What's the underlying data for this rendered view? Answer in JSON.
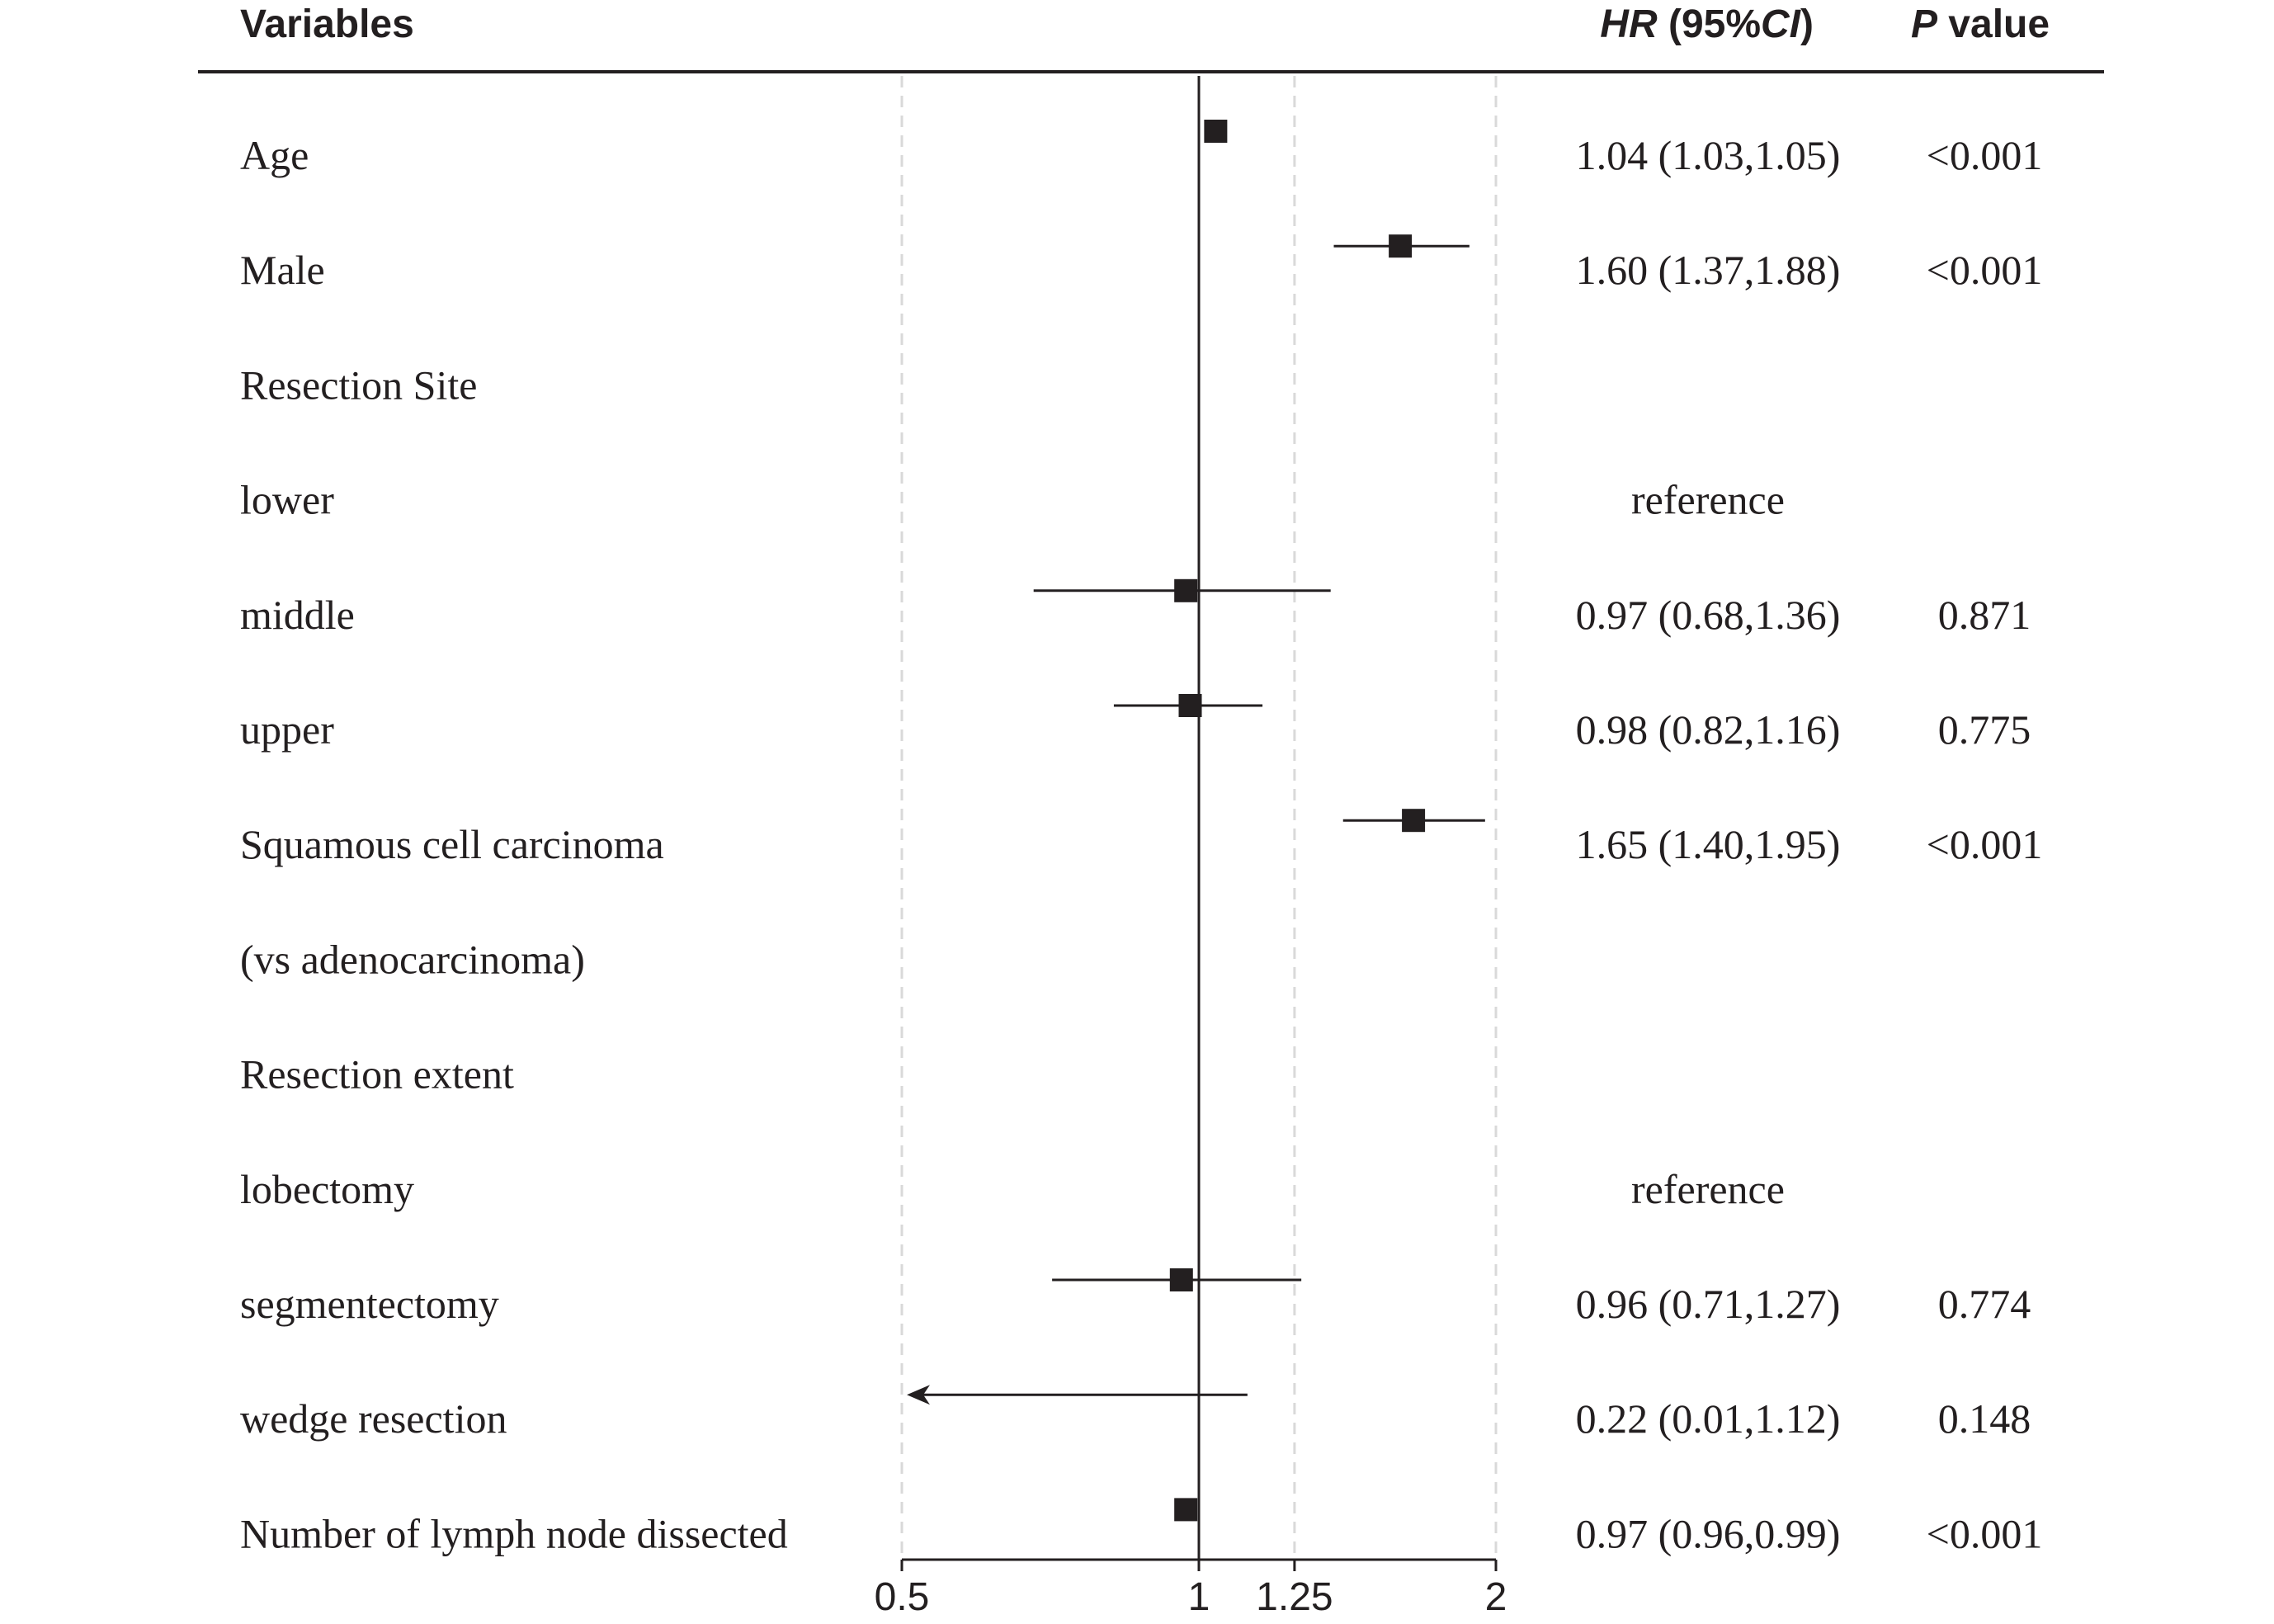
{
  "header": {
    "variables": "Variables",
    "hr_italic": "HR",
    "hr_ci_open": " (95%",
    "hr_ci_italic": "CI",
    "hr_ci_close": ")",
    "p_italic": "P",
    "p_rest": " value"
  },
  "colors": {
    "ink": "#231f20",
    "gridline": "#d9d9d9",
    "background": "#ffffff"
  },
  "chart_data": {
    "type": "forest",
    "xscale": "log",
    "xlim": [
      0.5,
      2
    ],
    "xticks": [
      0.5,
      1,
      1.25,
      2
    ],
    "xtick_labels": [
      "0.5",
      "1",
      "1.25",
      "2"
    ],
    "reference_line": 1,
    "dashed_gridlines": [
      0.5,
      1.25,
      2
    ],
    "rows": [
      {
        "label": "Age",
        "hr": 1.04,
        "lo": 1.03,
        "hi": 1.05,
        "hr_text": "1.04 (1.03,1.05)",
        "p_text": "<0.001",
        "mark": "square"
      },
      {
        "label": "Male",
        "hr": 1.6,
        "lo": 1.37,
        "hi": 1.88,
        "hr_text": "1.60 (1.37,1.88)",
        "p_text": "<0.001",
        "mark": "square"
      },
      {
        "label": "Resection Site",
        "hr": null,
        "lo": null,
        "hi": null,
        "hr_text": "",
        "p_text": "",
        "mark": "none"
      },
      {
        "label": "lower",
        "hr": null,
        "lo": null,
        "hi": null,
        "hr_text": "reference",
        "p_text": "",
        "mark": "none"
      },
      {
        "label": "middle",
        "hr": 0.97,
        "lo": 0.68,
        "hi": 1.36,
        "hr_text": "0.97 (0.68,1.36)",
        "p_text": "0.871",
        "mark": "square"
      },
      {
        "label": "upper",
        "hr": 0.98,
        "lo": 0.82,
        "hi": 1.16,
        "hr_text": "0.98 (0.82,1.16)",
        "p_text": "0.775",
        "mark": "square"
      },
      {
        "label": "Squamous cell carcinoma",
        "hr": 1.65,
        "lo": 1.4,
        "hi": 1.95,
        "hr_text": "1.65 (1.40,1.95)",
        "p_text": "<0.001",
        "mark": "square"
      },
      {
        "label": "(vs adenocarcinoma)",
        "hr": null,
        "lo": null,
        "hi": null,
        "hr_text": "",
        "p_text": "",
        "mark": "none"
      },
      {
        "label": "Resection extent",
        "hr": null,
        "lo": null,
        "hi": null,
        "hr_text": "",
        "p_text": "",
        "mark": "none"
      },
      {
        "label": "lobectomy",
        "hr": null,
        "lo": null,
        "hi": null,
        "hr_text": "reference",
        "p_text": "",
        "mark": "none"
      },
      {
        "label": "segmentectomy",
        "hr": 0.96,
        "lo": 0.71,
        "hi": 1.27,
        "hr_text": "0.96 (0.71,1.27)",
        "p_text": "0.774",
        "mark": "square"
      },
      {
        "label": "wedge resection",
        "hr": 0.22,
        "lo": 0.01,
        "hi": 1.12,
        "hr_text": "0.22 (0.01,1.12)",
        "p_text": "0.148",
        "mark": "arrow-left"
      },
      {
        "label": "Number of lymph node dissected",
        "hr": 0.97,
        "lo": 0.96,
        "hi": 0.99,
        "hr_text": "0.97 (0.96,0.99)",
        "p_text": "<0.001",
        "mark": "square"
      }
    ]
  }
}
